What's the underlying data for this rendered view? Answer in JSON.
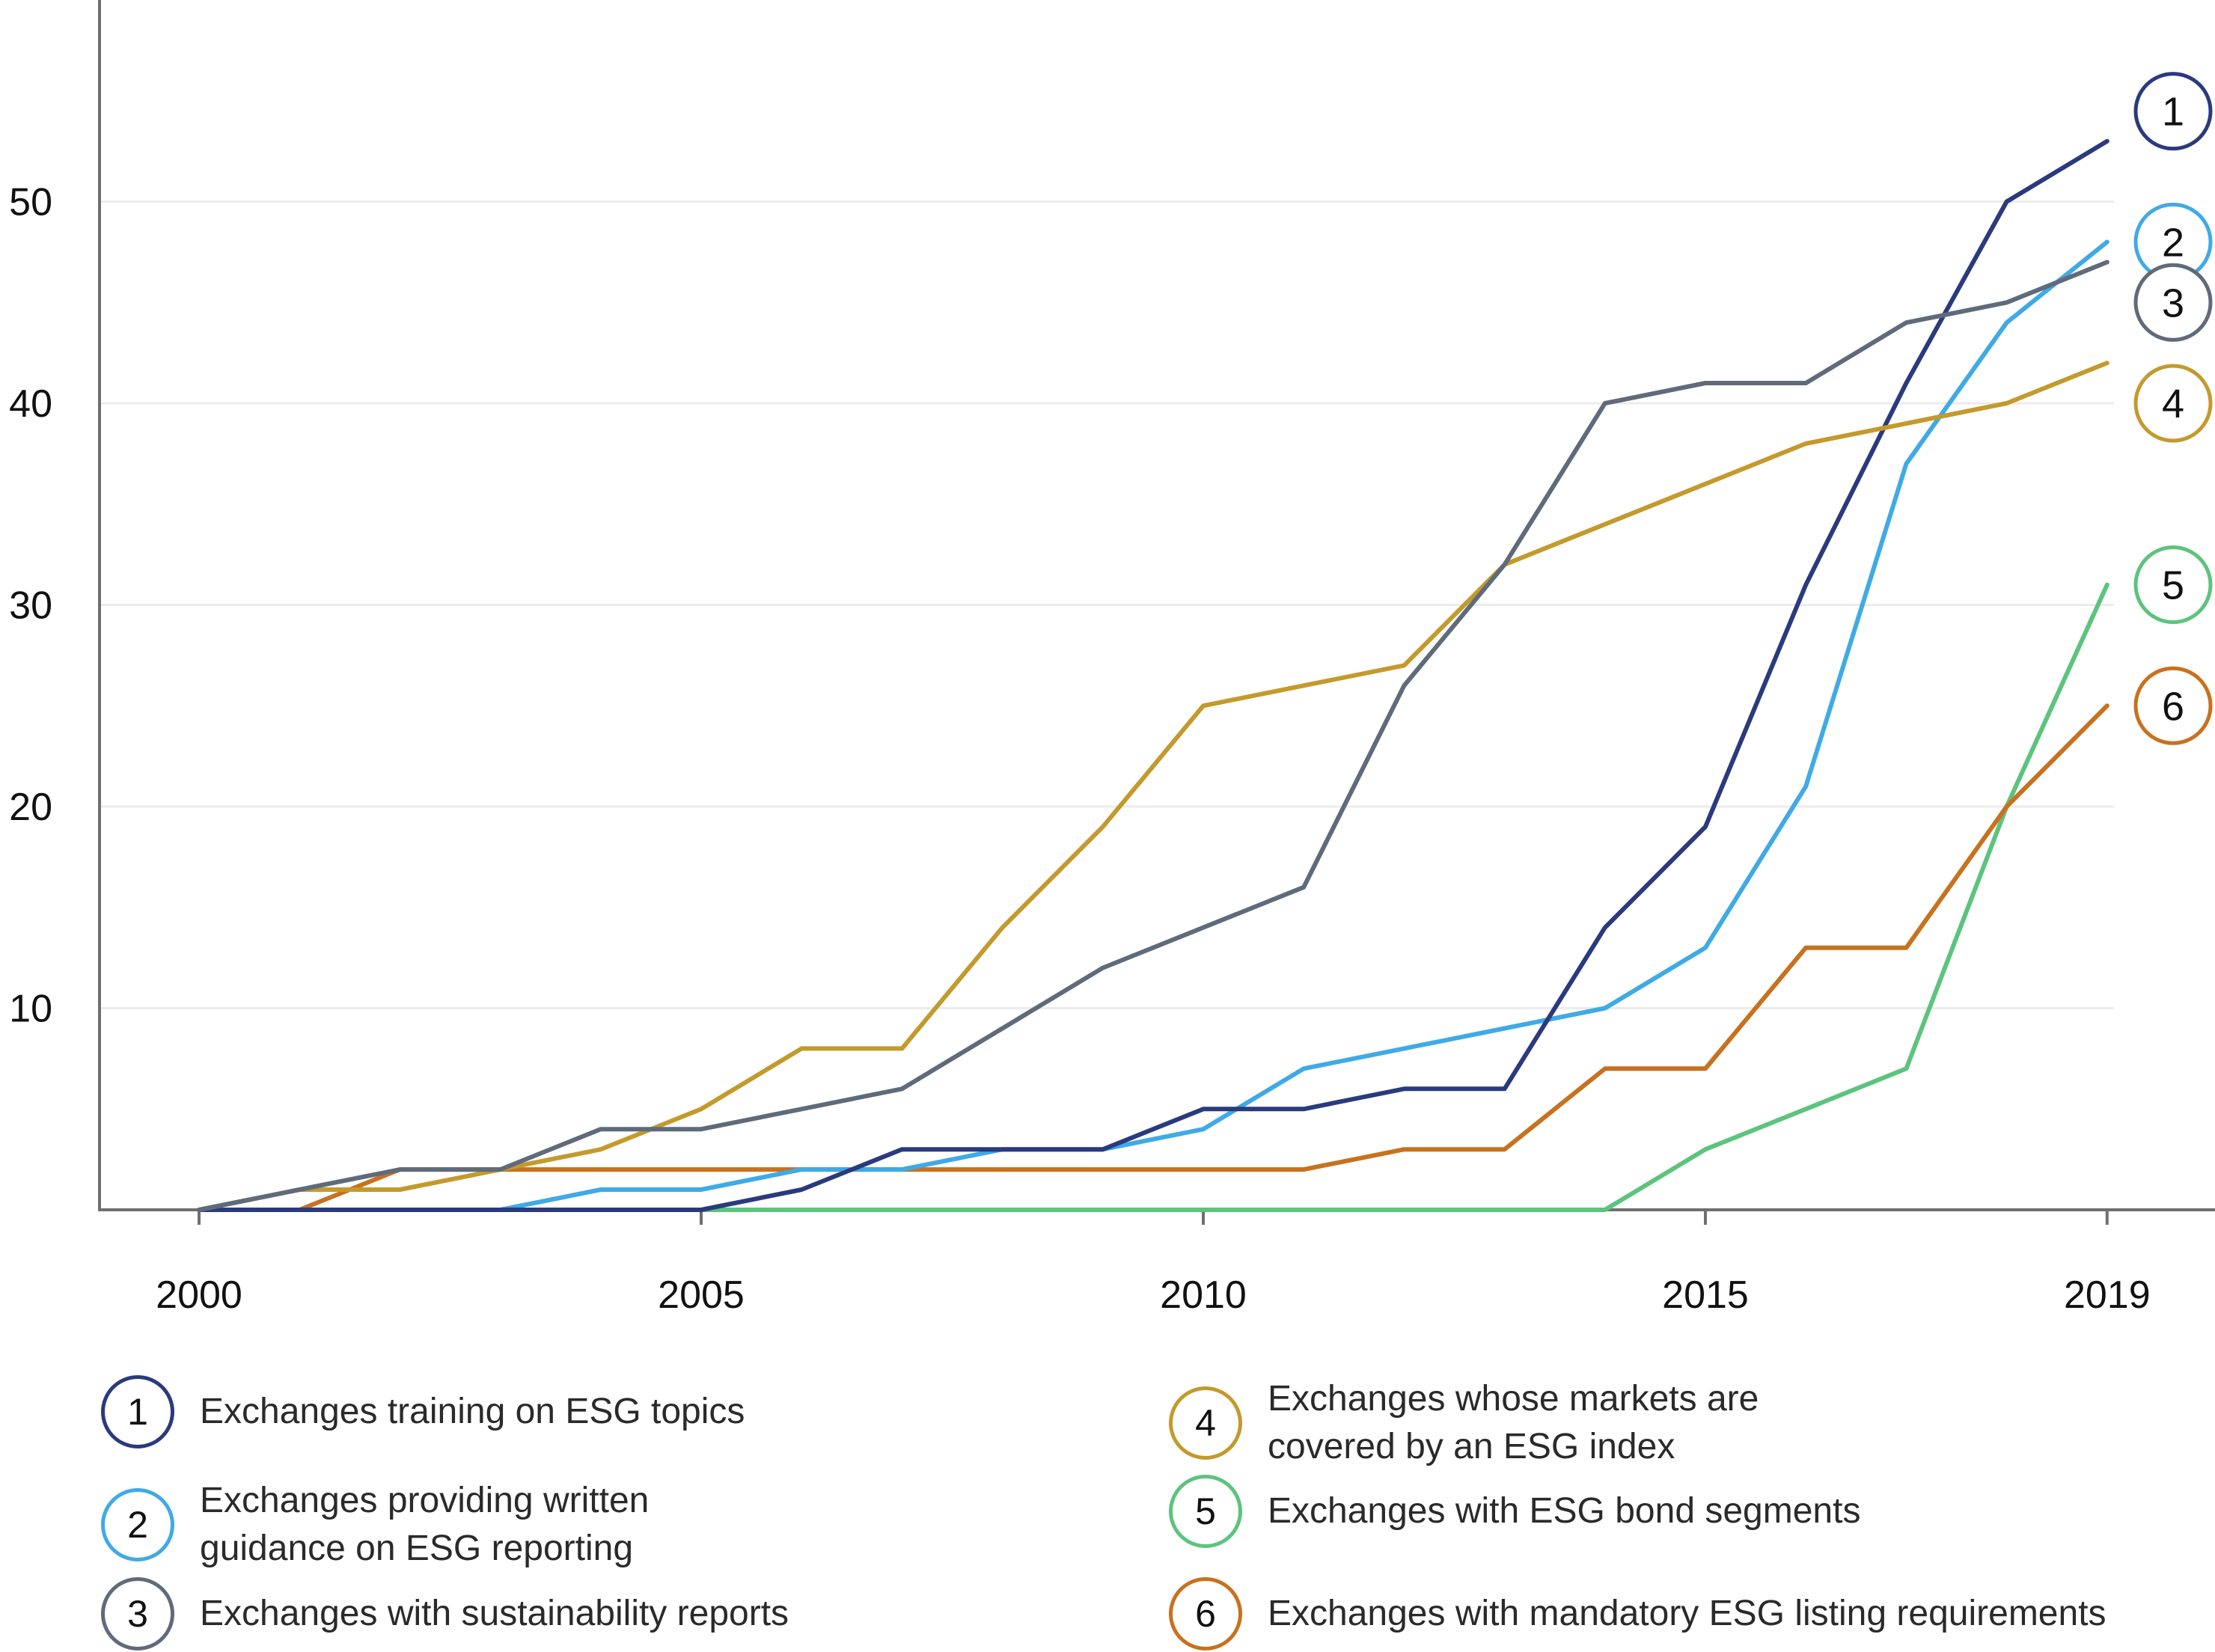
{
  "chart_data": {
    "type": "line",
    "x": [
      2000,
      2001,
      2002,
      2003,
      2004,
      2005,
      2006,
      2007,
      2008,
      2009,
      2010,
      2011,
      2012,
      2013,
      2014,
      2015,
      2016,
      2017,
      2018,
      2019
    ],
    "x_ticks": [
      "2000",
      "2005",
      "2010",
      "2015",
      "2019"
    ],
    "y_ticks": [
      "10",
      "20",
      "30",
      "40",
      "50"
    ],
    "ylim": [
      0,
      57
    ],
    "xlim": [
      1999,
      2020
    ],
    "grid": "horizontal",
    "legend_position": "bottom",
    "series": [
      {
        "id": "1",
        "name": "Exchanges training on ESG topics",
        "color": "#2a3a7e",
        "values": [
          0,
          0,
          0,
          0,
          0,
          0,
          1,
          3,
          3,
          3,
          5,
          5,
          6,
          6,
          14,
          19,
          31,
          41,
          50,
          53
        ]
      },
      {
        "id": "2",
        "name": "Exchanges providing written guidance on ESG reporting",
        "color": "#3faae6",
        "values": [
          0,
          0,
          0,
          0,
          1,
          1,
          2,
          2,
          3,
          3,
          4,
          7,
          8,
          9,
          10,
          13,
          21,
          37,
          44,
          48
        ]
      },
      {
        "id": "3",
        "name": "Exchanges with sustainability reports",
        "color": "#5f6b7b",
        "values": [
          0,
          1,
          2,
          2,
          4,
          4,
          5,
          6,
          9,
          12,
          14,
          16,
          26,
          32,
          40,
          41,
          41,
          44,
          45,
          47
        ]
      },
      {
        "id": "4",
        "name": "Exchanges whose markets are covered by an ESG index",
        "color": "#c49a2c",
        "values": [
          0,
          1,
          1,
          2,
          3,
          5,
          8,
          8,
          14,
          19,
          25,
          26,
          27,
          32,
          34,
          36,
          38,
          39,
          40,
          42
        ]
      },
      {
        "id": "5",
        "name": "Exchanges with ESG bond segments",
        "color": "#5cc47c",
        "values": [
          0,
          0,
          0,
          0,
          0,
          0,
          0,
          0,
          0,
          0,
          0,
          0,
          0,
          0,
          0,
          3,
          5,
          7,
          20,
          31
        ]
      },
      {
        "id": "6",
        "name": "Exchanges with mandatory ESG listing requirements",
        "color": "#c8711e",
        "values": [
          0,
          0,
          2,
          2,
          2,
          2,
          2,
          2,
          2,
          2,
          2,
          2,
          3,
          3,
          7,
          7,
          13,
          13,
          20,
          25
        ]
      }
    ]
  },
  "legend": [
    {
      "number": "1",
      "lines": [
        "Exchanges training on ESG topics"
      ],
      "color": "#2a3a7e"
    },
    {
      "number": "2",
      "lines": [
        "Exchanges providing written",
        "guidance on ESG reporting"
      ],
      "color": "#3faae6"
    },
    {
      "number": "3",
      "lines": [
        "Exchanges with sustainability reports"
      ],
      "color": "#5f6b7b"
    },
    {
      "number": "4",
      "lines": [
        "Exchanges whose markets are",
        "covered by an ESG index"
      ],
      "color": "#c49a2c"
    },
    {
      "number": "5",
      "lines": [
        "Exchanges with ESG bond segments"
      ],
      "color": "#5cc47c"
    },
    {
      "number": "6",
      "lines": [
        "Exchanges with mandatory ESG listing requirements"
      ],
      "color": "#c8711e"
    }
  ]
}
